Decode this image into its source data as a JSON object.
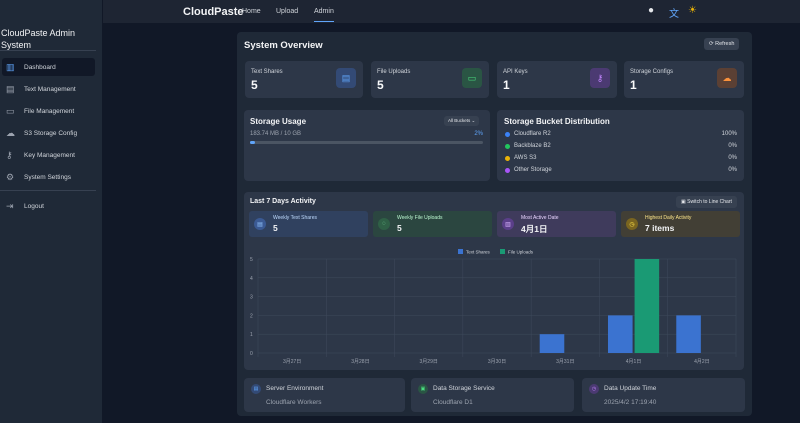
{
  "header": {
    "brand": "CloudPaste",
    "nav": [
      "Home",
      "Upload",
      "Admin"
    ],
    "active": "Admin",
    "icons": [
      "github-icon",
      "translate-icon",
      "sun-icon"
    ]
  },
  "sidebar": {
    "title": "CloudPaste Admin System",
    "items": [
      {
        "label": "Dashboard",
        "icon": "chart-icon",
        "active": true
      },
      {
        "label": "Text Management",
        "icon": "document-icon"
      },
      {
        "label": "File Management",
        "icon": "folder-icon"
      },
      {
        "label": "S3 Storage Config",
        "icon": "cloud-icon"
      },
      {
        "label": "Key Management",
        "icon": "key-icon"
      },
      {
        "label": "System Settings",
        "icon": "gear-icon"
      }
    ],
    "logout": "Logout"
  },
  "overview": {
    "title": "System Overview",
    "refresh": "Refresh",
    "stats": [
      {
        "label": "Text Shares",
        "value": "5",
        "color": "#3b82f6"
      },
      {
        "label": "File Uploads",
        "value": "5",
        "color": "#22c55e"
      },
      {
        "label": "API Keys",
        "value": "1",
        "color": "#a855f7"
      },
      {
        "label": "Storage Configs",
        "value": "1",
        "color": "#f97316"
      }
    ]
  },
  "storage": {
    "title": "Storage Usage",
    "filter": "All Buckets",
    "used": "183.74 MB / 10 GB",
    "percent_label": "2%",
    "percent": 2
  },
  "distribution": {
    "title": "Storage Bucket Distribution",
    "items": [
      {
        "name": "Cloudflare R2",
        "pct": "100%",
        "color": "#3b82f6"
      },
      {
        "name": "Backblaze B2",
        "pct": "0%",
        "color": "#22c55e"
      },
      {
        "name": "AWS S3",
        "pct": "0%",
        "color": "#eab308"
      },
      {
        "name": "Other Storage",
        "pct": "0%",
        "color": "#a855f7"
      }
    ]
  },
  "activity": {
    "title": "Last 7 Days Activity",
    "switch": "Switch to Line Chart",
    "summary": [
      {
        "label": "Weekly Text Shares",
        "value": "5"
      },
      {
        "label": "Weekly File Uploads",
        "value": "5"
      },
      {
        "label": "Most Active Date",
        "value": "4月1日"
      },
      {
        "label": "Highest Daily Activity",
        "value": "7 items"
      }
    ]
  },
  "chart_data": {
    "type": "bar",
    "categories": [
      "3月27日",
      "3月28日",
      "3月29日",
      "3月30日",
      "3月31日",
      "4月1日",
      "4月2日"
    ],
    "series": [
      {
        "name": "Text Shares",
        "values": [
          0,
          0,
          0,
          0,
          1,
          2,
          2
        ],
        "color": "#3b73d0"
      },
      {
        "name": "File Uploads",
        "values": [
          0,
          0,
          0,
          0,
          0,
          5,
          0
        ],
        "color": "#1a9a74"
      }
    ],
    "ylim": [
      0,
      5
    ],
    "yticks": [
      "0",
      "1",
      "2",
      "3",
      "4",
      "5"
    ],
    "legend": "top",
    "grid": true
  },
  "footer": [
    {
      "label": "Server Environment",
      "value": "Cloudflare Workers",
      "color": "#3b82f6"
    },
    {
      "label": "Data Storage Service",
      "value": "Cloudflare D1",
      "color": "#22c55e"
    },
    {
      "label": "Data Update Time",
      "value": "2025/4/2 17:19:40",
      "color": "#a855f7"
    }
  ]
}
